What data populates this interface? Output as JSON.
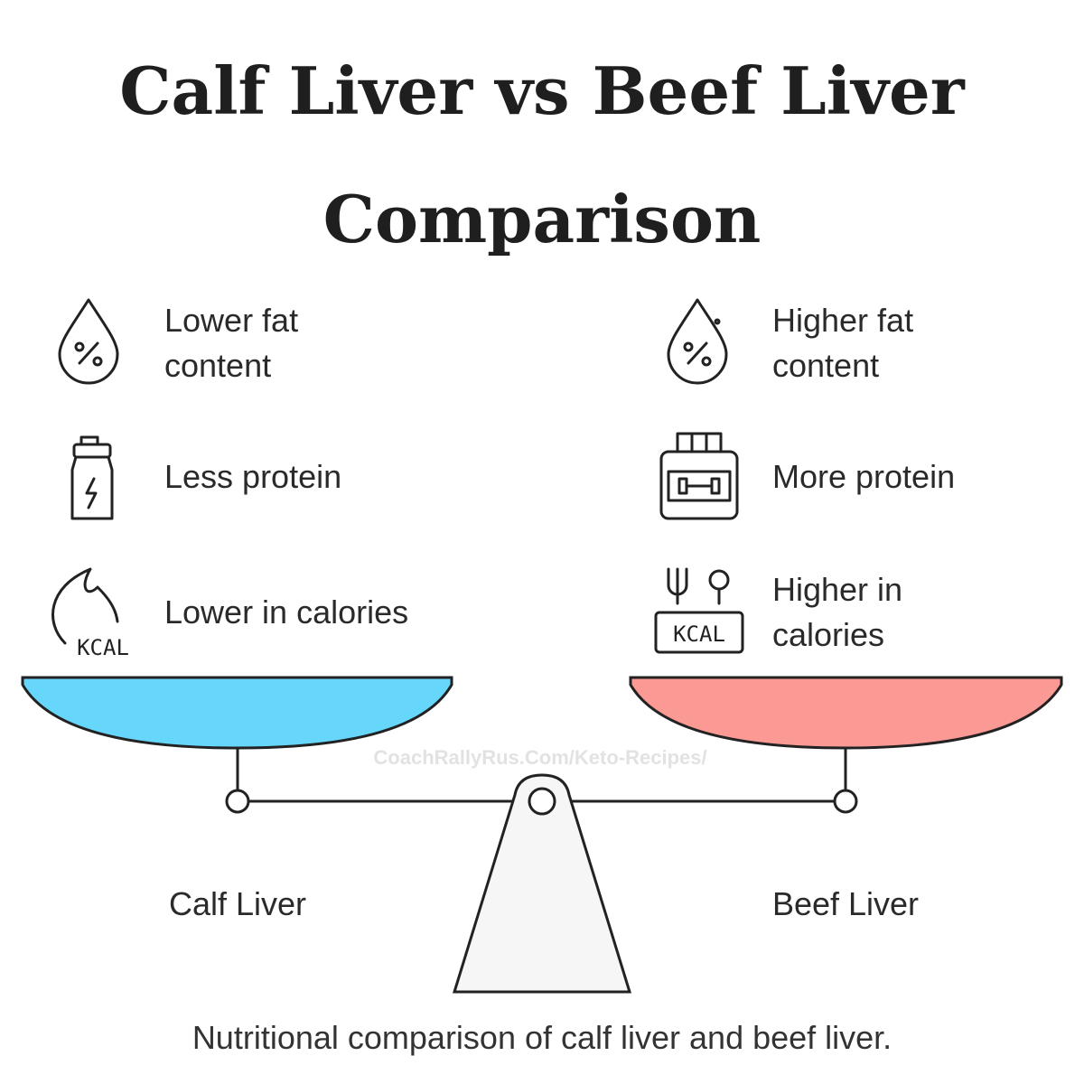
{
  "header": {
    "title": "Calf Liver vs Beef Liver Comparison"
  },
  "left": {
    "label": "Calf Liver",
    "items": [
      {
        "text": "Lower fat content"
      },
      {
        "text": "Less protein"
      },
      {
        "text": "Lower in calories",
        "icon_text": "KCAL"
      }
    ]
  },
  "right": {
    "label": "Beef Liver",
    "items": [
      {
        "text": "Higher fat content"
      },
      {
        "text": "More protein"
      },
      {
        "text": "Higher in calories",
        "icon_text": "KCAL"
      }
    ]
  },
  "watermark": "CoachRallyRus.Com/Keto-Recipes/",
  "caption": "Nutritional comparison of calf liver and beef liver."
}
